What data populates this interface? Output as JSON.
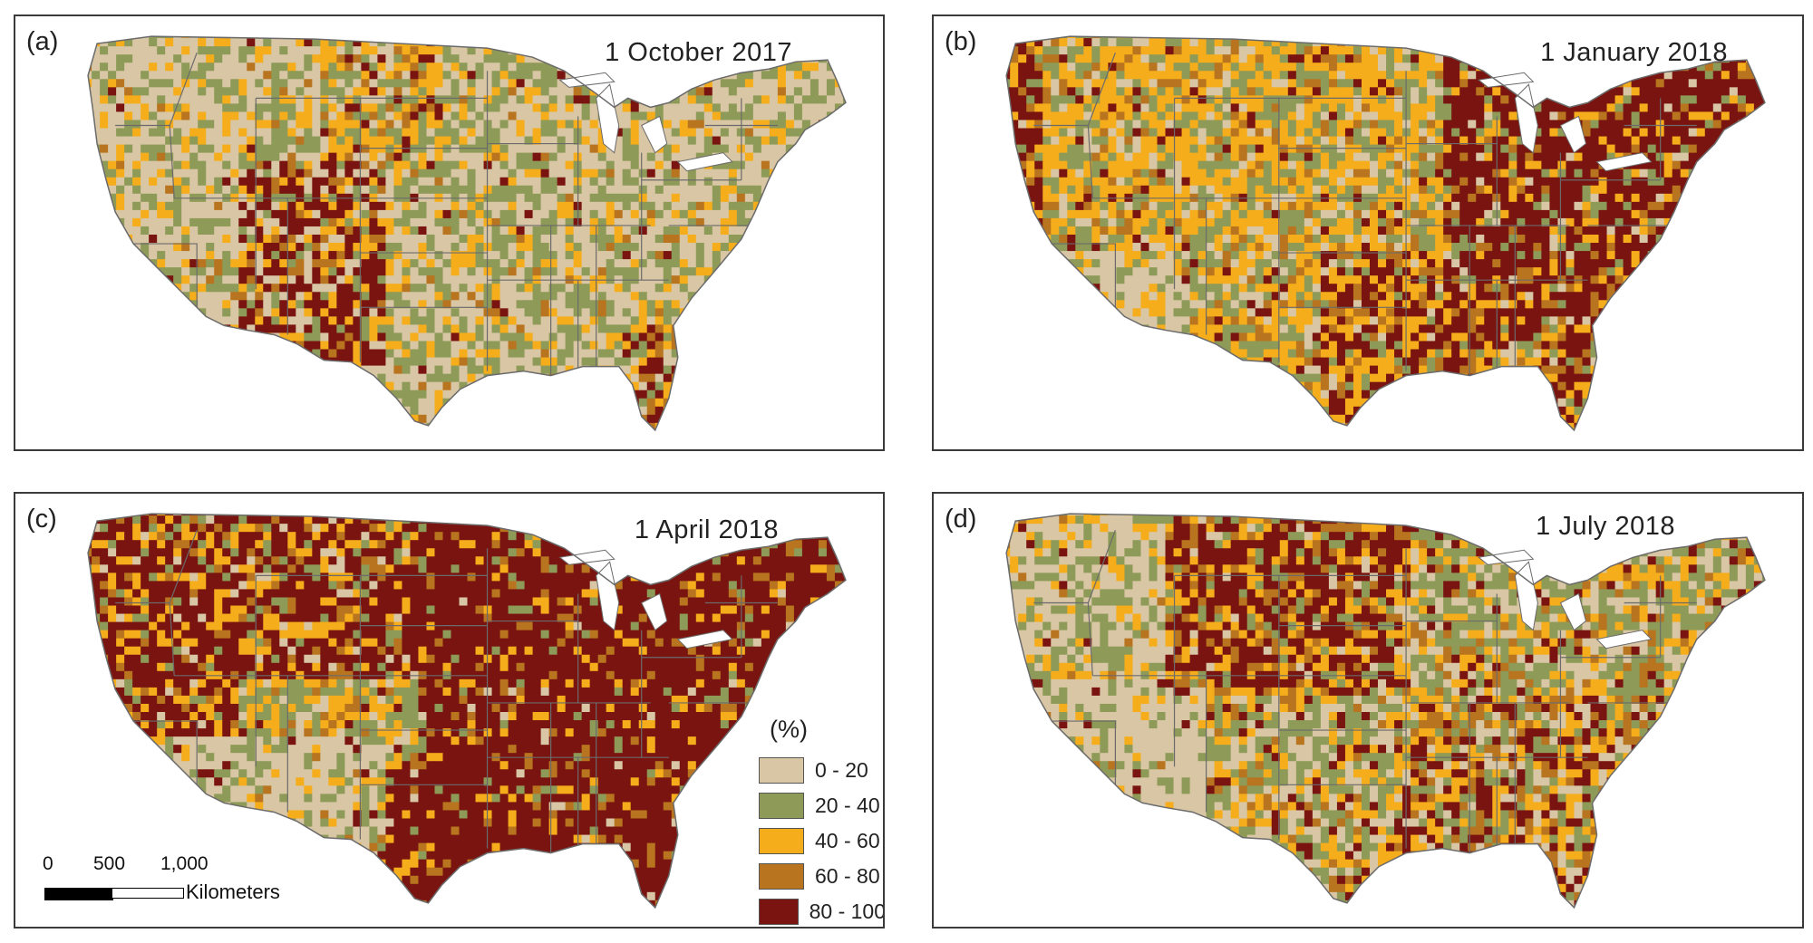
{
  "panels": [
    {
      "label": "(a)",
      "date": "1 October 2017"
    },
    {
      "label": "(b)",
      "date": "1 January 2018"
    },
    {
      "label": "(c)",
      "date": "1 April 2018"
    },
    {
      "label": "(d)",
      "date": "1 July 2018"
    }
  ],
  "legend": {
    "title": "(%)",
    "items": [
      {
        "label": "0 - 20",
        "color": "#d8c6a4"
      },
      {
        "label": "20 - 40",
        "color": "#8e9a57"
      },
      {
        "label": "40 - 60",
        "color": "#f5ad1c"
      },
      {
        "label": "60 - 80",
        "color": "#b8741e"
      },
      {
        "label": "80 - 100",
        "color": "#7a1410"
      }
    ]
  },
  "scalebar": {
    "ticks": [
      "0",
      "500",
      "1,000"
    ],
    "unit": "Kilometers"
  },
  "colors": {
    "land_base": "#d8c6a4",
    "state_borders": "#6b6b6b",
    "water": "#ffffff"
  }
}
